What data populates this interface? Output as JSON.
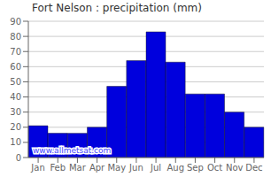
{
  "chart_data": {
    "type": "bar",
    "title": "Fort Nelson : precipitation (mm)",
    "categories": [
      "Jan",
      "Feb",
      "Mar",
      "Apr",
      "May",
      "Jun",
      "Jul",
      "Aug",
      "Sep",
      "Oct",
      "Nov",
      "Dec"
    ],
    "values": [
      21,
      16,
      16,
      20,
      47,
      64,
      83,
      63,
      42,
      42,
      30,
      20
    ],
    "color": "#0000dd",
    "ylim": [
      0,
      90
    ],
    "yticks": [
      0,
      10,
      20,
      30,
      40,
      50,
      60,
      70,
      80,
      90
    ],
    "grid": true,
    "annotations": [
      "www.allmetsat.com"
    ]
  }
}
